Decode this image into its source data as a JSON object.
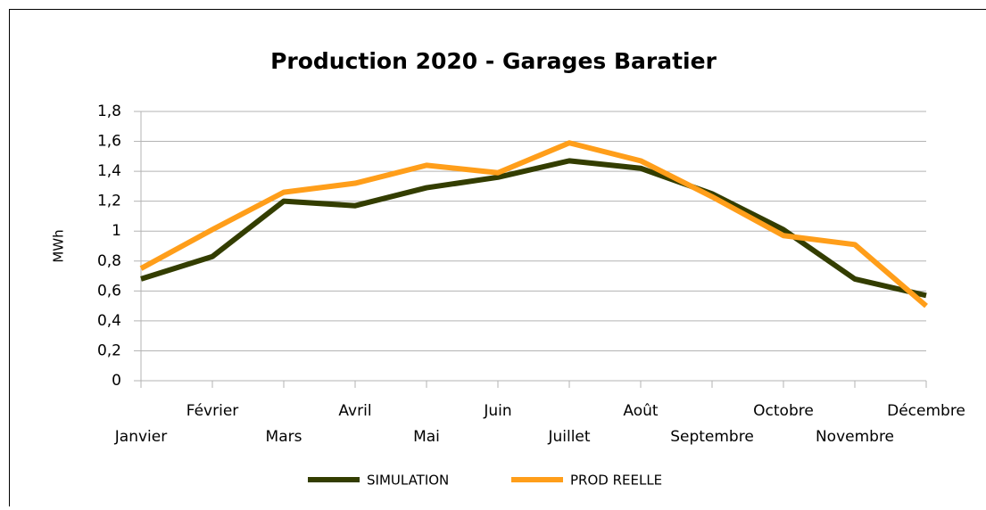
{
  "chart_data": {
    "type": "line",
    "title": "Production 2020 - Garages Baratier",
    "y_label": "MWh",
    "categories": [
      "Janvier",
      "Février",
      "Mars",
      "Avril",
      "Mai",
      "Juin",
      "Juillet",
      "Août",
      "Septembre",
      "Octobre",
      "Novembre",
      "Décembre"
    ],
    "series": [
      {
        "name": "SIMULATION",
        "color": "#333d00",
        "values": [
          0.68,
          0.83,
          1.2,
          1.17,
          1.29,
          1.36,
          1.47,
          1.42,
          1.25,
          1.01,
          0.68,
          0.57
        ]
      },
      {
        "name": "PROD REELLE",
        "color": "#ff9e1a",
        "values": [
          0.75,
          1.01,
          1.26,
          1.32,
          1.44,
          1.39,
          1.59,
          1.47,
          1.23,
          0.97,
          0.91,
          0.5
        ]
      }
    ],
    "ylim": [
      0,
      1.8
    ],
    "yticks": [
      0,
      {
        "value": 0.2,
        "label": "0,2"
      },
      {
        "value": 0.4,
        "label": "0,4"
      },
      {
        "value": 0.6,
        "label": "0,6"
      },
      {
        "value": 0.8,
        "label": "0,8"
      },
      1,
      {
        "value": 1.2,
        "label": "1,2"
      },
      {
        "value": 1.4,
        "label": "1,4"
      },
      {
        "value": 1.6,
        "label": "1,6"
      },
      {
        "value": 1.8,
        "label": "1,8"
      }
    ],
    "grid": true,
    "legend": "bottom"
  }
}
